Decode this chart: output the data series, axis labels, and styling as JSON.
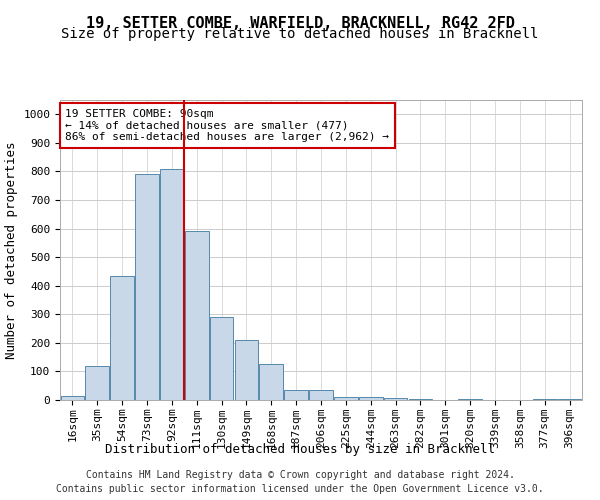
{
  "title": "19, SETTER COMBE, WARFIELD, BRACKNELL, RG42 2FD",
  "subtitle": "Size of property relative to detached houses in Bracknell",
  "xlabel": "Distribution of detached houses by size in Bracknell",
  "ylabel": "Number of detached properties",
  "footer_line1": "Contains HM Land Registry data © Crown copyright and database right 2024.",
  "footer_line2": "Contains public sector information licensed under the Open Government Licence v3.0.",
  "annotation_line1": "19 SETTER COMBE: 90sqm",
  "annotation_line2": "← 14% of detached houses are smaller (477)",
  "annotation_line3": "86% of semi-detached houses are larger (2,962) →",
  "bar_labels": [
    "16sqm",
    "35sqm",
    "54sqm",
    "73sqm",
    "92sqm",
    "111sqm",
    "130sqm",
    "149sqm",
    "168sqm",
    "187sqm",
    "206sqm",
    "225sqm",
    "244sqm",
    "263sqm",
    "282sqm",
    "301sqm",
    "320sqm",
    "339sqm",
    "358sqm",
    "377sqm",
    "396sqm"
  ],
  "bar_values": [
    15,
    120,
    435,
    790,
    810,
    590,
    290,
    210,
    125,
    35,
    35,
    10,
    10,
    8,
    5,
    1,
    5,
    0,
    0,
    5,
    5
  ],
  "bar_color": "#c8d8e8",
  "bar_edge_color": "#5588aa",
  "red_line_index": 4,
  "red_line_color": "#cc0000",
  "ylim": [
    0,
    1050
  ],
  "yticks": [
    0,
    100,
    200,
    300,
    400,
    500,
    600,
    700,
    800,
    900,
    1000
  ],
  "annotation_box_color": "#ffffff",
  "annotation_box_edge": "#cc0000",
  "grid_color": "#cccccc",
  "background_color": "#ffffff",
  "title_fontsize": 11,
  "subtitle_fontsize": 10,
  "axis_label_fontsize": 9,
  "tick_fontsize": 8,
  "annotation_fontsize": 8,
  "footer_fontsize": 7
}
